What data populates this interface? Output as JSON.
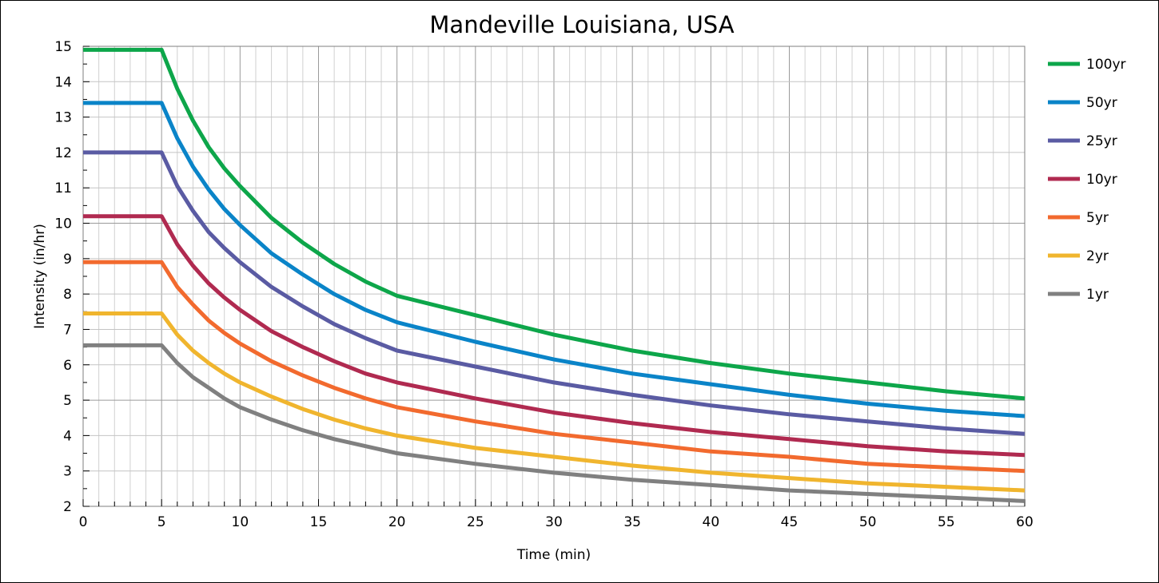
{
  "chart_data": {
    "type": "line",
    "title": "Mandeville Louisiana,  USA",
    "xlabel": "Time (min)",
    "ylabel": "Intensity (in/hr)",
    "xlim": [
      0,
      60
    ],
    "ylim": [
      2,
      15
    ],
    "x_major_ticks": [
      "0",
      "5",
      "10",
      "15",
      "20",
      "25",
      "30",
      "35",
      "40",
      "45",
      "50",
      "55",
      "60"
    ],
    "y_ticks": [
      "2",
      "3",
      "4",
      "5",
      "6",
      "7",
      "8",
      "9",
      "10",
      "11",
      "12",
      "13",
      "14",
      "15"
    ],
    "grid": true,
    "legend_position": "right",
    "x": [
      0,
      5,
      6,
      7,
      8,
      9,
      10,
      12,
      14,
      16,
      18,
      20,
      25,
      30,
      35,
      40,
      45,
      50,
      55,
      60
    ],
    "series": [
      {
        "name": "100yr",
        "color": "#0DA64A",
        "values": [
          14.9,
          14.9,
          13.8,
          12.9,
          12.15,
          11.55,
          11.05,
          10.15,
          9.45,
          8.85,
          8.35,
          7.95,
          7.4,
          6.85,
          6.4,
          6.05,
          5.75,
          5.5,
          5.25,
          5.05
        ]
      },
      {
        "name": "50yr",
        "color": "#0A84C8",
        "values": [
          13.4,
          13.4,
          12.4,
          11.6,
          10.95,
          10.4,
          9.95,
          9.15,
          8.55,
          8.0,
          7.55,
          7.2,
          6.65,
          6.15,
          5.75,
          5.45,
          5.15,
          4.9,
          4.7,
          4.55
        ]
      },
      {
        "name": "25yr",
        "color": "#5A5BA3",
        "values": [
          12.0,
          12.0,
          11.05,
          10.35,
          9.75,
          9.3,
          8.9,
          8.2,
          7.65,
          7.15,
          6.75,
          6.4,
          5.95,
          5.5,
          5.15,
          4.85,
          4.6,
          4.4,
          4.2,
          4.05
        ]
      },
      {
        "name": "10yr",
        "color": "#B02A50",
        "values": [
          10.2,
          10.2,
          9.4,
          8.8,
          8.3,
          7.9,
          7.55,
          6.95,
          6.5,
          6.1,
          5.75,
          5.5,
          5.05,
          4.65,
          4.35,
          4.1,
          3.9,
          3.7,
          3.55,
          3.45
        ]
      },
      {
        "name": "5yr",
        "color": "#F26A2E",
        "values": [
          8.9,
          8.9,
          8.2,
          7.7,
          7.25,
          6.9,
          6.6,
          6.1,
          5.7,
          5.35,
          5.05,
          4.8,
          4.4,
          4.05,
          3.8,
          3.55,
          3.4,
          3.2,
          3.1,
          3.0
        ]
      },
      {
        "name": "2yr",
        "color": "#F0B52E",
        "values": [
          7.45,
          7.45,
          6.85,
          6.4,
          6.05,
          5.75,
          5.5,
          5.1,
          4.75,
          4.45,
          4.2,
          4.0,
          3.65,
          3.4,
          3.15,
          2.95,
          2.8,
          2.65,
          2.55,
          2.45
        ]
      },
      {
        "name": "1yr",
        "color": "#808080",
        "values": [
          6.55,
          6.55,
          6.05,
          5.65,
          5.35,
          5.05,
          4.8,
          4.45,
          4.15,
          3.9,
          3.7,
          3.5,
          3.2,
          2.95,
          2.75,
          2.6,
          2.45,
          2.35,
          2.25,
          2.15
        ]
      }
    ]
  }
}
